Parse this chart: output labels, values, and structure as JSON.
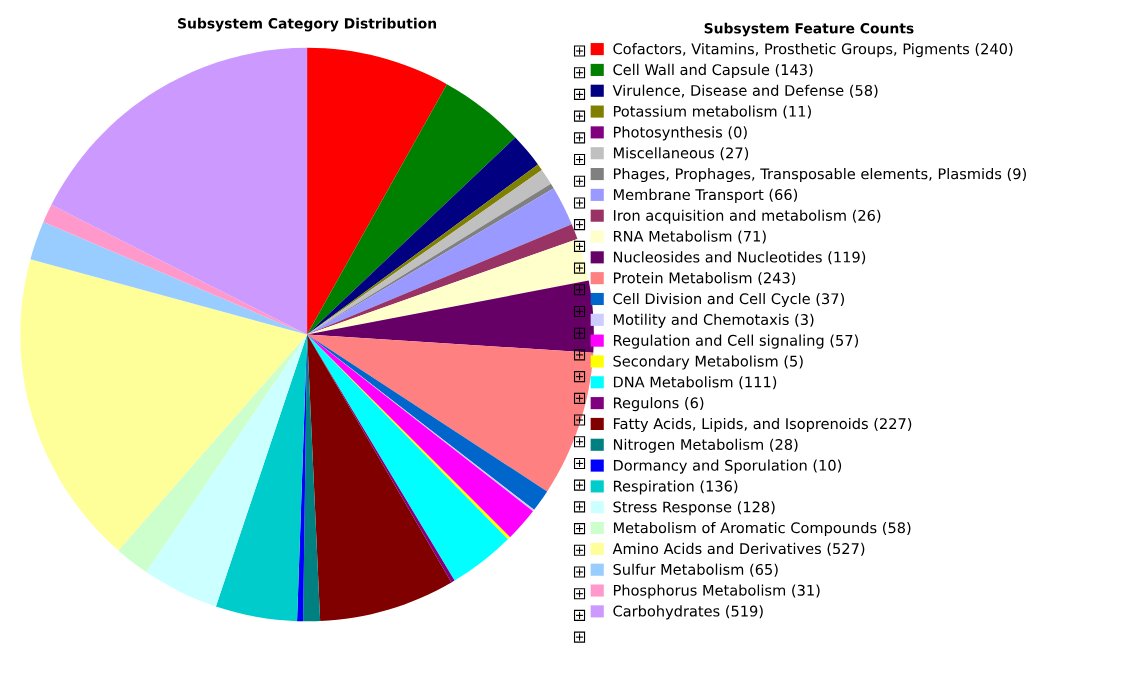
{
  "chart_data": {
    "type": "pie",
    "title": "Subsystem Category Distribution",
    "legend_title": "Subsystem Feature Counts",
    "legend": "right",
    "categories": [
      "Cofactors, Vitamins, Prosthetic Groups, Pigments (240)",
      "Cell Wall and Capsule (143)",
      "Virulence, Disease and Defense (58)",
      "Potassium metabolism (11)",
      "Photosynthesis (0)",
      "Miscellaneous (27)",
      "Phages, Prophages, Transposable elements, Plasmids (9)",
      "Membrane Transport (66)",
      "Iron acquisition and metabolism (26)",
      "RNA Metabolism (71)",
      "Nucleosides and Nucleotides (119)",
      "Protein Metabolism (243)",
      "Cell Division and Cell Cycle (37)",
      "Motility and Chemotaxis (3)",
      "Regulation and Cell signaling (57)",
      "Secondary Metabolism (5)",
      "DNA Metabolism (111)",
      "Regulons (6)",
      "Fatty Acids, Lipids, and Isoprenoids (227)",
      "Nitrogen Metabolism (28)",
      "Dormancy and Sporulation (10)",
      "Respiration (136)",
      "Stress Response (128)",
      "Metabolism of Aromatic Compounds (58)",
      "Amino Acids and Derivatives (527)",
      "Sulfur Metabolism (65)",
      "Phosphorus Metabolism (31)",
      "Carbohydrates (519)"
    ],
    "values": [
      240,
      143,
      58,
      11,
      0,
      27,
      9,
      66,
      26,
      71,
      119,
      243,
      37,
      3,
      57,
      5,
      111,
      6,
      227,
      28,
      10,
      136,
      128,
      58,
      527,
      65,
      31,
      519
    ],
    "colors": [
      "#ff0000",
      "#008000",
      "#000080",
      "#808000",
      "#800080",
      "#c0c0c0",
      "#808080",
      "#9999ff",
      "#993366",
      "#ffffcc",
      "#660066",
      "#ff8080",
      "#0066cc",
      "#ccccff",
      "#ff00ff",
      "#ffff00",
      "#00ffff",
      "#800080",
      "#800000",
      "#008080",
      "#0000ff",
      "#00cccc",
      "#ccffff",
      "#ccffcc",
      "#ffff99",
      "#99ccff",
      "#ff99cc",
      "#cc99ff"
    ]
  }
}
